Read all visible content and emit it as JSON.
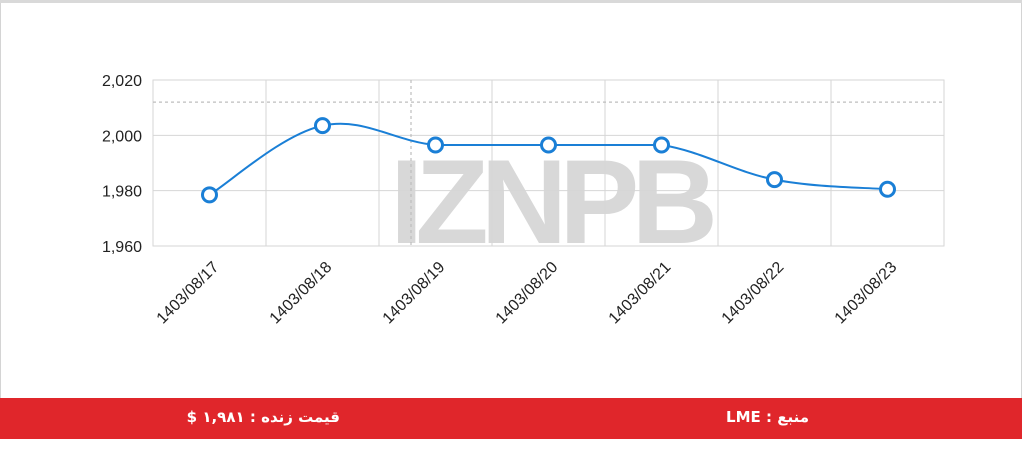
{
  "chart_data": {
    "type": "line",
    "title": "",
    "xlabel": "",
    "ylabel": "",
    "categories": [
      "1403/08/17",
      "1403/08/18",
      "1403/08/19",
      "1403/08/20",
      "1403/08/21",
      "1403/08/22",
      "1403/08/23"
    ],
    "series": [
      {
        "values": [
          1978.5,
          2003.5,
          1996.5,
          1996.5,
          1996.5,
          1984,
          1980.5
        ],
        "color": "#1a7fd6"
      }
    ],
    "yticks": [
      "2,020",
      "2,000",
      "1,980",
      "1,960"
    ],
    "ytick_values": [
      2020,
      2000,
      1980,
      1960
    ],
    "ylim": [
      1960,
      2020
    ],
    "reference_line": 2012,
    "grid": true,
    "legend": "none",
    "curve": "smooth"
  },
  "watermark": {
    "text": "IZNPB"
  },
  "footer": {
    "live_price": "قیمت زنده : ۱,۹۸۱ $",
    "source": "منبع : LME",
    "color": "#e0262b"
  }
}
